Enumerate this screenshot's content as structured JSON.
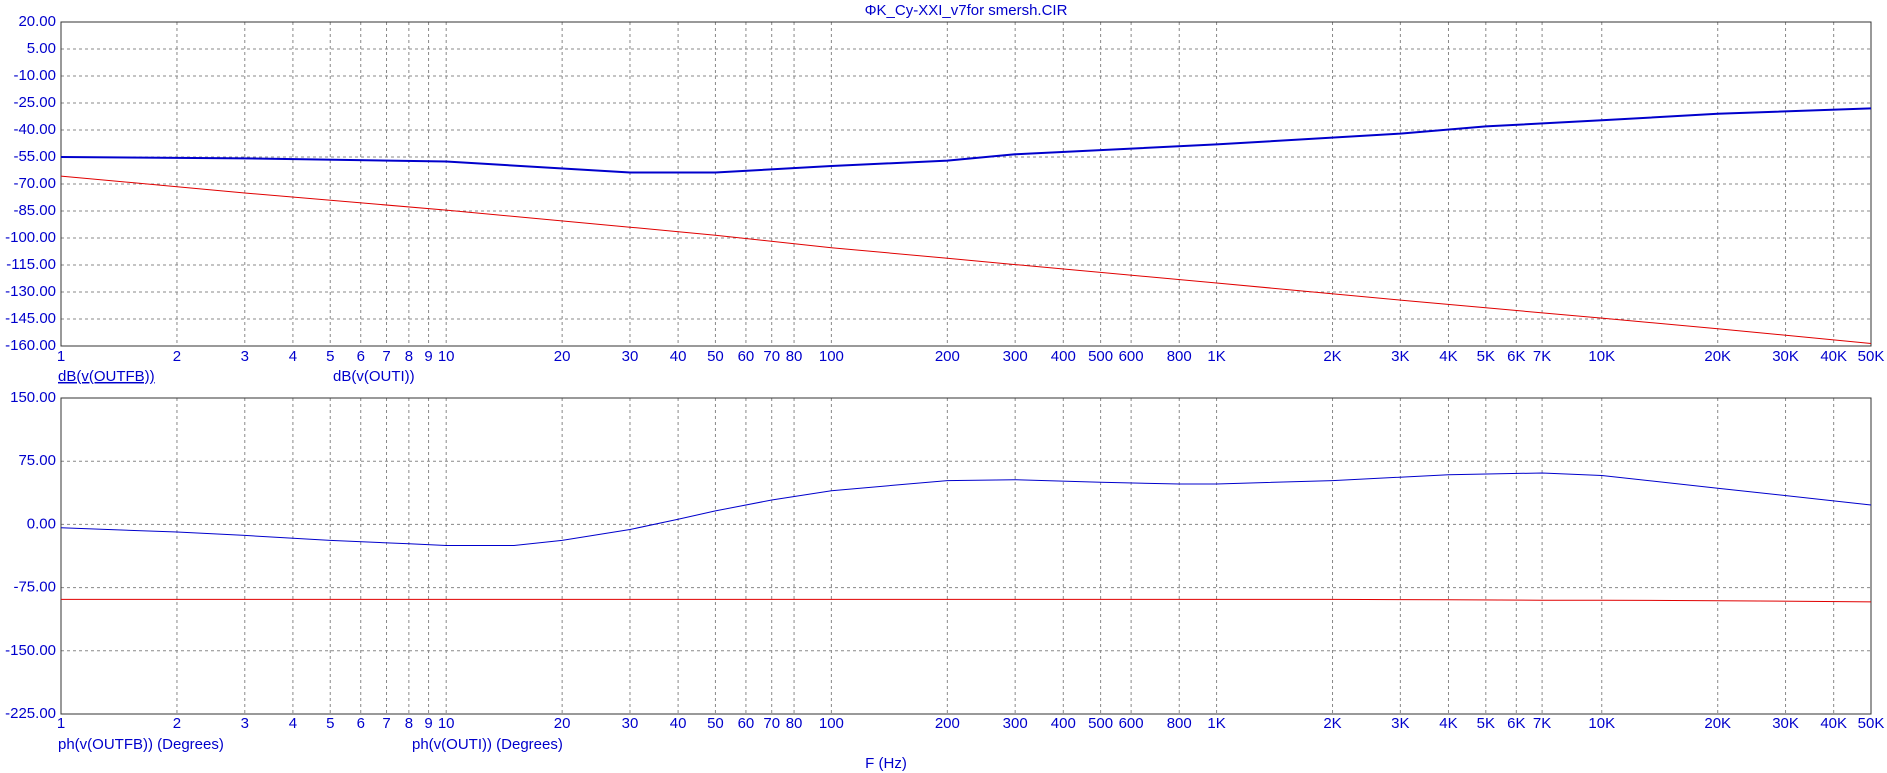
{
  "chart_data": [
    {
      "type": "line",
      "title": "ΦK_Cy-XXI_v7for smersh.CIR",
      "log_x": true,
      "grid": true,
      "xlim": [
        1,
        50000
      ],
      "xticks": [
        1,
        2,
        3,
        4,
        5,
        6,
        7,
        8,
        9,
        10,
        20,
        30,
        40,
        50,
        60,
        70,
        80,
        100,
        200,
        300,
        400,
        500,
        600,
        800,
        {
          "value": 1000,
          "label": "1K"
        },
        {
          "value": 2000,
          "label": "2K"
        },
        {
          "value": 3000,
          "label": "3K"
        },
        {
          "value": 4000,
          "label": "4K"
        },
        {
          "value": 5000,
          "label": "5K"
        },
        {
          "value": 6000,
          "label": "6K"
        },
        {
          "value": 7000,
          "label": "7K"
        },
        {
          "value": 10000,
          "label": "10K"
        },
        {
          "value": 20000,
          "label": "20K"
        },
        {
          "value": 30000,
          "label": "30K"
        },
        {
          "value": 40000,
          "label": "40K"
        },
        {
          "value": 50000,
          "label": "50K"
        }
      ],
      "ylim": [
        -160,
        20
      ],
      "yticks": [
        {
          "value": 20,
          "label": "20.00"
        },
        {
          "value": 5,
          "label": "5.00"
        },
        {
          "value": -10,
          "label": "-10.00"
        },
        {
          "value": -25,
          "label": "-25.00"
        },
        {
          "value": -40,
          "label": "-40.00"
        },
        {
          "value": -55,
          "label": "-55.00"
        },
        {
          "value": -70,
          "label": "-70.00"
        },
        {
          "value": -85,
          "label": "-85.00"
        },
        {
          "value": -100,
          "label": "-100.00"
        },
        {
          "value": -115,
          "label": "-115.00"
        },
        {
          "value": -130,
          "label": "-130.00"
        },
        {
          "value": -145,
          "label": "-145.00"
        },
        {
          "value": -160,
          "label": "-160.00"
        }
      ],
      "x": [
        1,
        3,
        10,
        30,
        50,
        100,
        200,
        300,
        1000,
        3000,
        5000,
        10000,
        20000,
        50000
      ],
      "series": [
        {
          "name": "dB(v(OUTFB))",
          "color": "#0000cc",
          "width": 2,
          "values": [
            -55,
            -55.8,
            -57.5,
            -63.6,
            -63.6,
            -60,
            -57,
            -53.5,
            -48,
            -42,
            -38,
            -34.6,
            -31,
            -28
          ]
        },
        {
          "name": "dB(v(OUTI))",
          "color": "#e00000",
          "width": 1,
          "values": [
            -65.6,
            -75,
            -84.5,
            -94,
            -98.5,
            -105.4,
            -111.3,
            -114.8,
            -125,
            -134.5,
            -138.8,
            -144.5,
            -150.4,
            -158.6
          ]
        }
      ]
    },
    {
      "type": "line",
      "x_label": "F (Hz)",
      "log_x": true,
      "grid": true,
      "xlim": [
        1,
        50000
      ],
      "xticks": [
        1,
        2,
        3,
        4,
        5,
        6,
        7,
        8,
        9,
        10,
        20,
        30,
        40,
        50,
        60,
        70,
        80,
        100,
        200,
        300,
        400,
        500,
        600,
        800,
        {
          "value": 1000,
          "label": "1K"
        },
        {
          "value": 2000,
          "label": "2K"
        },
        {
          "value": 3000,
          "label": "3K"
        },
        {
          "value": 4000,
          "label": "4K"
        },
        {
          "value": 5000,
          "label": "5K"
        },
        {
          "value": 6000,
          "label": "6K"
        },
        {
          "value": 7000,
          "label": "7K"
        },
        {
          "value": 10000,
          "label": "10K"
        },
        {
          "value": 20000,
          "label": "20K"
        },
        {
          "value": 30000,
          "label": "30K"
        },
        {
          "value": 40000,
          "label": "40K"
        },
        {
          "value": 50000,
          "label": "50K"
        }
      ],
      "ylim": [
        -225,
        150
      ],
      "yticks": [
        {
          "value": 150,
          "label": "150.00"
        },
        {
          "value": 75,
          "label": "75.00"
        },
        {
          "value": 0,
          "label": "0.00"
        },
        {
          "value": -75,
          "label": "-75.00"
        },
        {
          "value": -150,
          "label": "-150.00"
        },
        {
          "value": -225,
          "label": "-225.00"
        }
      ],
      "x": [
        1,
        2,
        3,
        5,
        8,
        10,
        15,
        20,
        30,
        40,
        50,
        70,
        100,
        200,
        300,
        500,
        800,
        1000,
        2000,
        4000,
        7000,
        10000,
        20000,
        50000
      ],
      "series": [
        {
          "name": "ph(v(OUTFB)) (Degrees)",
          "color": "#0000cc",
          "width": 1,
          "values": [
            -4,
            -9,
            -13,
            -19,
            -23,
            -25,
            -25,
            -19,
            -6,
            6,
            16,
            29,
            40,
            52,
            53,
            50,
            48,
            48,
            52,
            59,
            61,
            58,
            43,
            23
          ]
        },
        {
          "name": "ph(v(OUTI)) (Degrees)",
          "color": "#e00000",
          "width": 1,
          "values": [
            -89,
            -89,
            -89,
            -89,
            -89,
            -89,
            -89,
            -89,
            -89,
            -89,
            -89,
            -89,
            -89,
            -89,
            -89,
            -89,
            -89,
            -89,
            -89,
            -89.5,
            -90,
            -90,
            -90.5,
            -92
          ]
        }
      ]
    }
  ]
}
